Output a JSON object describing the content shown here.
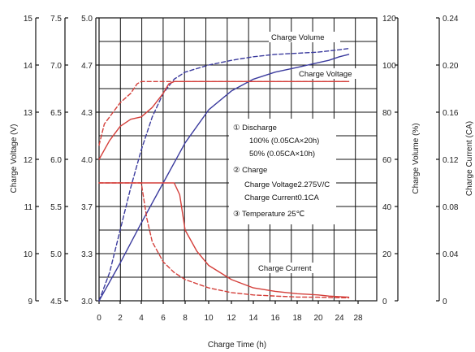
{
  "chart_data": {
    "type": "line",
    "xlabel": "Charge Time (h)",
    "x_ticks": [
      "0",
      "2",
      "4",
      "6",
      "8",
      "10",
      "12",
      "14",
      "16",
      "18",
      "20",
      "24",
      "28"
    ],
    "left_axes": [
      {
        "ticks": [
          "9",
          "10",
          "11",
          "12",
          "13",
          "14",
          "15"
        ],
        "label": "Charge Voltage (V)"
      },
      {
        "ticks": [
          "4.5",
          "5.0",
          "5.5",
          "6.0",
          "6.5",
          "7.0",
          "7.5"
        ],
        "label": ""
      },
      {
        "ticks": [
          "3.0",
          "3.3",
          "3.7",
          "4.0",
          "4.3",
          "4.7",
          "5.0"
        ],
        "label": ""
      }
    ],
    "right_axes": [
      {
        "ticks": [
          "0",
          "20",
          "40",
          "60",
          "80",
          "100",
          "120"
        ],
        "label": "Charge Volume (%)"
      },
      {
        "ticks": [
          "0",
          "0.04",
          "0.08",
          "0.12",
          "0.16",
          "0.20",
          "0.24"
        ],
        "label": "Charge Current (CA)"
      }
    ],
    "curve_labels": {
      "volume": "Charge Volume",
      "voltage": "Charge Voltage",
      "current": "Charge Current"
    },
    "notes": [
      "①  Discharge",
      "100%  (0.05CA×20h)",
      "50%  (0.05CA×10h)",
      "②  Charge",
      "Charge Voltage2.275V/C",
      "Charge Current0.1CA",
      "③  Temperature 25℃"
    ],
    "series": [
      {
        "kind": "volume",
        "discharge": "100%",
        "x": [
          0,
          2,
          4,
          6,
          8,
          10,
          12,
          14,
          16,
          18,
          20,
          22,
          24,
          26
        ],
        "y": [
          0,
          16,
          33,
          50,
          67,
          81,
          89,
          94,
          97,
          99,
          101,
          102,
          103.5,
          104.5
        ]
      },
      {
        "kind": "volume",
        "discharge": "50%",
        "x": [
          0,
          1,
          2,
          3,
          4,
          5,
          6,
          7,
          8,
          10,
          12,
          14,
          16,
          18,
          20,
          22,
          24,
          26
        ],
        "y": [
          0,
          12,
          30,
          48,
          64,
          78,
          88,
          94,
          97,
          100,
          102,
          103.5,
          104.5,
          105,
          105.5,
          106,
          106.5,
          107
        ]
      },
      {
        "kind": "voltage",
        "discharge": "100%",
        "x": [
          0,
          1,
          2,
          3,
          4,
          5,
          6,
          6.5,
          7,
          26
        ],
        "y": [
          12.0,
          12.4,
          12.7,
          12.85,
          12.9,
          13.1,
          13.4,
          13.6,
          13.65,
          13.65
        ]
      },
      {
        "kind": "voltage",
        "discharge": "50%",
        "x": [
          0,
          0.5,
          1,
          2,
          3,
          3.6,
          4,
          26
        ],
        "y": [
          12.3,
          12.75,
          12.9,
          13.2,
          13.4,
          13.6,
          13.65,
          13.65
        ]
      },
      {
        "kind": "current",
        "discharge": "100%",
        "x": [
          0,
          7,
          7.5,
          8,
          9,
          10,
          12,
          14,
          16,
          18,
          20,
          22,
          24,
          26
        ],
        "y": [
          0.1,
          0.1,
          0.09,
          0.06,
          0.042,
          0.03,
          0.018,
          0.011,
          0.008,
          0.006,
          0.005,
          0.004,
          0.0035,
          0.003
        ]
      },
      {
        "kind": "current",
        "discharge": "50%",
        "x": [
          0,
          4,
          4.5,
          5,
          6,
          7,
          8,
          10,
          12,
          14,
          16,
          18,
          20,
          22,
          24,
          26
        ],
        "y": [
          0.1,
          0.1,
          0.07,
          0.05,
          0.033,
          0.024,
          0.018,
          0.011,
          0.007,
          0.005,
          0.004,
          0.0032,
          0.003,
          0.0028,
          0.0026,
          0.0025
        ]
      }
    ],
    "colors": {
      "volume": "#3b3b9e",
      "voltage": "#d43f3a",
      "current": "#d43f3a",
      "grid": "#111111"
    }
  }
}
